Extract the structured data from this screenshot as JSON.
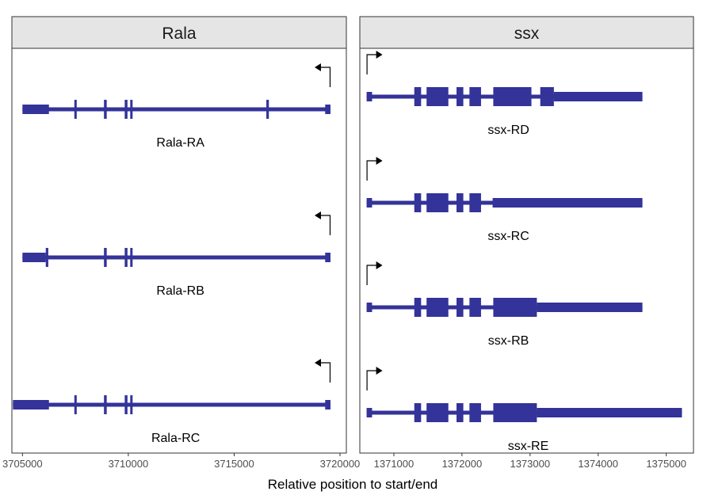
{
  "chart_data": {
    "type": "gene-structure",
    "xlabel": "Relative position to start/end",
    "colors": {
      "feature": "#333399",
      "arrow": "#000000",
      "strip_bg": "#e5e5e5",
      "panel_border": "#333333"
    },
    "panels": [
      {
        "gene": "Rala",
        "xlim": [
          3704500,
          3720300
        ],
        "ticks": [
          3705000,
          3710000,
          3715000,
          3720000
        ],
        "tick_labels": [
          "3705000",
          "3710000",
          "3715000",
          "3720000"
        ],
        "strand": "-",
        "transcripts": [
          {
            "name": "Rala-RA",
            "start": 3705000,
            "end": 3719550,
            "utr": [
              [
                3705000,
                3706250
              ],
              [
                3719300,
                3719550
              ]
            ],
            "cds": [
              [
                3707450,
                3707550
              ],
              [
                3708850,
                3708980
              ],
              [
                3709830,
                3709960
              ],
              [
                3710090,
                3710190
              ],
              [
                3716520,
                3716640
              ]
            ]
          },
          {
            "name": "Rala-RB",
            "start": 3705000,
            "end": 3719550,
            "utr": [
              [
                3705000,
                3706100
              ],
              [
                3719300,
                3719550
              ]
            ],
            "cds": [
              [
                3706100,
                3706220
              ],
              [
                3708850,
                3708980
              ],
              [
                3709830,
                3709960
              ],
              [
                3710090,
                3710190
              ]
            ]
          },
          {
            "name": "Rala-RC",
            "start": 3704550,
            "end": 3719550,
            "utr": [
              [
                3704550,
                3706250
              ],
              [
                3719300,
                3719550
              ]
            ],
            "cds": [
              [
                3707450,
                3707550
              ],
              [
                3708850,
                3708980
              ],
              [
                3709830,
                3709960
              ],
              [
                3710090,
                3710190
              ]
            ]
          }
        ]
      },
      {
        "gene": "ssx",
        "xlim": [
          1370500,
          1375400
        ],
        "ticks": [
          1371000,
          1372000,
          1373000,
          1374000,
          1375000
        ],
        "tick_labels": [
          "1371000",
          "1372000",
          "1373000",
          "1374000",
          "1375000"
        ],
        "strand": "+",
        "transcripts": [
          {
            "name": "ssx-RD",
            "start": 1370600,
            "end": 1374650,
            "utr": [
              [
                1370600,
                1370680
              ],
              [
                1373350,
                1374650
              ]
            ],
            "cds": [
              [
                1371300,
                1371400
              ],
              [
                1371480,
                1371800
              ],
              [
                1371920,
                1372020
              ],
              [
                1372110,
                1372280
              ],
              [
                1372460,
                1373020
              ],
              [
                1373150,
                1373350
              ]
            ]
          },
          {
            "name": "ssx-RC",
            "start": 1370600,
            "end": 1374650,
            "utr": [
              [
                1370600,
                1370680
              ],
              [
                1372450,
                1374650
              ]
            ],
            "cds": [
              [
                1371300,
                1371400
              ],
              [
                1371480,
                1371800
              ],
              [
                1371920,
                1372020
              ],
              [
                1372110,
                1372280
              ]
            ]
          },
          {
            "name": "ssx-RB",
            "start": 1370600,
            "end": 1374650,
            "utr": [
              [
                1370600,
                1370680
              ],
              [
                1373100,
                1374650
              ]
            ],
            "cds": [
              [
                1371300,
                1371400
              ],
              [
                1371480,
                1371800
              ],
              [
                1371920,
                1372020
              ],
              [
                1372110,
                1372280
              ],
              [
                1372460,
                1373100
              ]
            ]
          },
          {
            "name": "ssx-RE",
            "start": 1370600,
            "end": 1375230,
            "utr": [
              [
                1370600,
                1370680
              ],
              [
                1373100,
                1375230
              ]
            ],
            "cds": [
              [
                1371300,
                1371400
              ],
              [
                1371480,
                1371800
              ],
              [
                1371920,
                1372020
              ],
              [
                1372110,
                1372280
              ],
              [
                1372460,
                1373100
              ]
            ]
          }
        ]
      }
    ]
  }
}
